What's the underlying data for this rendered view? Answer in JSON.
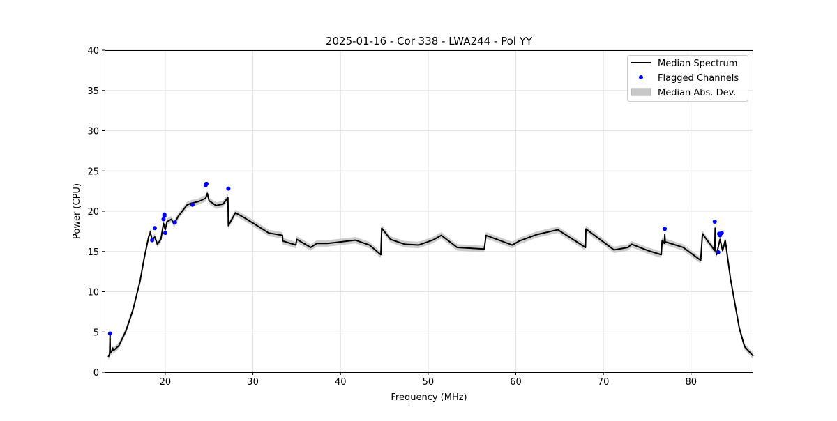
{
  "chart_data": {
    "type": "line",
    "title": "2025-01-16 - Cor 338 - LWA244 - Pol YY",
    "xlabel": "Frequency (MHz)",
    "ylabel": "Power (CPU)",
    "xlim": [
      13.08,
      87.1
    ],
    "ylim": [
      0,
      40
    ],
    "xticks": [
      20,
      30,
      40,
      50,
      60,
      70,
      80
    ],
    "yticks": [
      0,
      5,
      10,
      15,
      20,
      25,
      30,
      35,
      40
    ],
    "grid": true,
    "legend_position": "top-right",
    "legend": [
      "Median Spectrum",
      "Flagged Channels",
      "Median Abs. Dev."
    ],
    "colors": {
      "median": "#000000",
      "flagged": "#0000ff",
      "mad": "#c8c8c8"
    },
    "mad_halfwidth": 0.4,
    "series": [
      {
        "name": "Median Spectrum",
        "x": [
          13.5,
          13.65,
          13.7,
          13.72,
          13.9,
          14.0,
          14.1,
          14.7,
          15.5,
          16.3,
          17.1,
          17.6,
          18.1,
          18.3,
          18.5,
          18.8,
          19.1,
          19.5,
          19.8,
          20.0,
          20.2,
          20.7,
          21.0,
          21.5,
          22.0,
          22.5,
          23.0,
          23.8,
          24.6,
          24.8,
          25.0,
          25.8,
          26.6,
          27.15,
          27.2,
          28.0,
          29.0,
          30.2,
          31.8,
          33.38,
          33.4,
          34.9,
          35.0,
          36.6,
          37.3,
          38.5,
          41.7,
          43.3,
          44.6,
          44.7,
          45.7,
          47.3,
          48.9,
          50.5,
          51.5,
          53.3,
          56.4,
          56.6,
          59.6,
          60.4,
          62.4,
          63.6,
          64.8,
          67.95,
          68.0,
          71.2,
          72.8,
          73.2,
          75.1,
          76.6,
          76.7,
          76.95,
          77.0,
          77.05,
          79.1,
          81.1,
          81.3,
          82.7,
          82.75,
          82.8,
          82.9,
          83.3,
          83.6,
          83.9,
          84.5,
          85.5,
          86.1,
          87.1
        ],
        "y": [
          1.9,
          2.25,
          4.8,
          2.4,
          2.6,
          3.0,
          2.7,
          3.3,
          5.1,
          7.7,
          11.2,
          14.2,
          16.8,
          17.4,
          16.4,
          16.8,
          15.9,
          16.5,
          18.5,
          17.7,
          18.7,
          19.0,
          18.4,
          19.4,
          20.1,
          20.8,
          21.0,
          21.2,
          21.6,
          22.2,
          21.3,
          20.7,
          20.9,
          21.7,
          18.2,
          19.8,
          19.2,
          18.4,
          17.3,
          17.0,
          16.3,
          15.8,
          16.5,
          15.5,
          16.0,
          16.0,
          16.4,
          15.8,
          14.6,
          17.9,
          16.5,
          15.9,
          15.8,
          16.4,
          17.0,
          15.5,
          15.3,
          17.0,
          15.8,
          16.3,
          17.1,
          17.4,
          17.7,
          15.5,
          17.8,
          15.2,
          15.5,
          15.9,
          15.1,
          14.6,
          16.4,
          16.0,
          17.1,
          16.2,
          15.5,
          13.9,
          17.2,
          15.1,
          17.9,
          15.2,
          14.6,
          16.5,
          15.1,
          16.4,
          11.6,
          5.5,
          3.2,
          2.0
        ]
      },
      {
        "name": "Flagged Channels",
        "x": [
          13.7,
          18.5,
          18.8,
          19.8,
          19.9,
          19.9,
          20.0,
          21.1,
          23.1,
          24.6,
          24.7,
          27.2,
          77.0,
          82.7,
          83.1,
          83.2,
          83.3,
          83.5
        ],
        "y": [
          4.8,
          16.4,
          17.9,
          19.0,
          19.6,
          19.4,
          17.3,
          18.6,
          20.8,
          23.2,
          23.4,
          22.8,
          17.8,
          18.7,
          14.9,
          17.2,
          17.0,
          17.3
        ]
      }
    ]
  }
}
